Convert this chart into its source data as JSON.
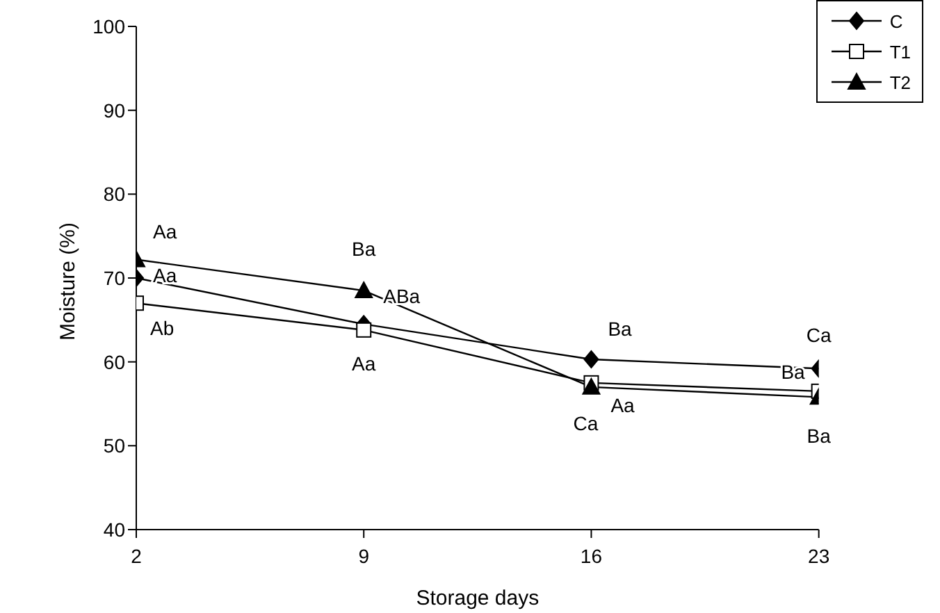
{
  "chart_data": {
    "type": "line",
    "xlabel": "Storage days",
    "ylabel": "Moisture (%)",
    "x": [
      2,
      9,
      16,
      23
    ],
    "xlim": [
      2,
      23
    ],
    "xticks": [
      2,
      9,
      16,
      23
    ],
    "ylim": [
      40,
      100
    ],
    "yticks": [
      40,
      50,
      60,
      70,
      80,
      90,
      100
    ],
    "grid": false,
    "legend": "top right",
    "series": [
      {
        "name": "C",
        "color": "#000000",
        "marker": "diamond",
        "values": [
          70,
          64.5,
          60.3,
          59.2
        ],
        "value_labels": [
          "Aa",
          "ABa",
          "Ba",
          "Ca"
        ]
      },
      {
        "name": "T1",
        "color": "#000000",
        "marker": "square",
        "values": [
          67,
          63.8,
          57.5,
          56.5
        ],
        "value_labels": [
          "Ab",
          "Aa",
          "Aa",
          "Ba"
        ]
      },
      {
        "name": "T2",
        "color": "#000000",
        "marker": "triangle",
        "values": [
          72.2,
          68.5,
          57,
          55.8
        ],
        "value_labels": [
          "Aa",
          "Ba",
          "Ca",
          "Ba"
        ]
      }
    ]
  }
}
